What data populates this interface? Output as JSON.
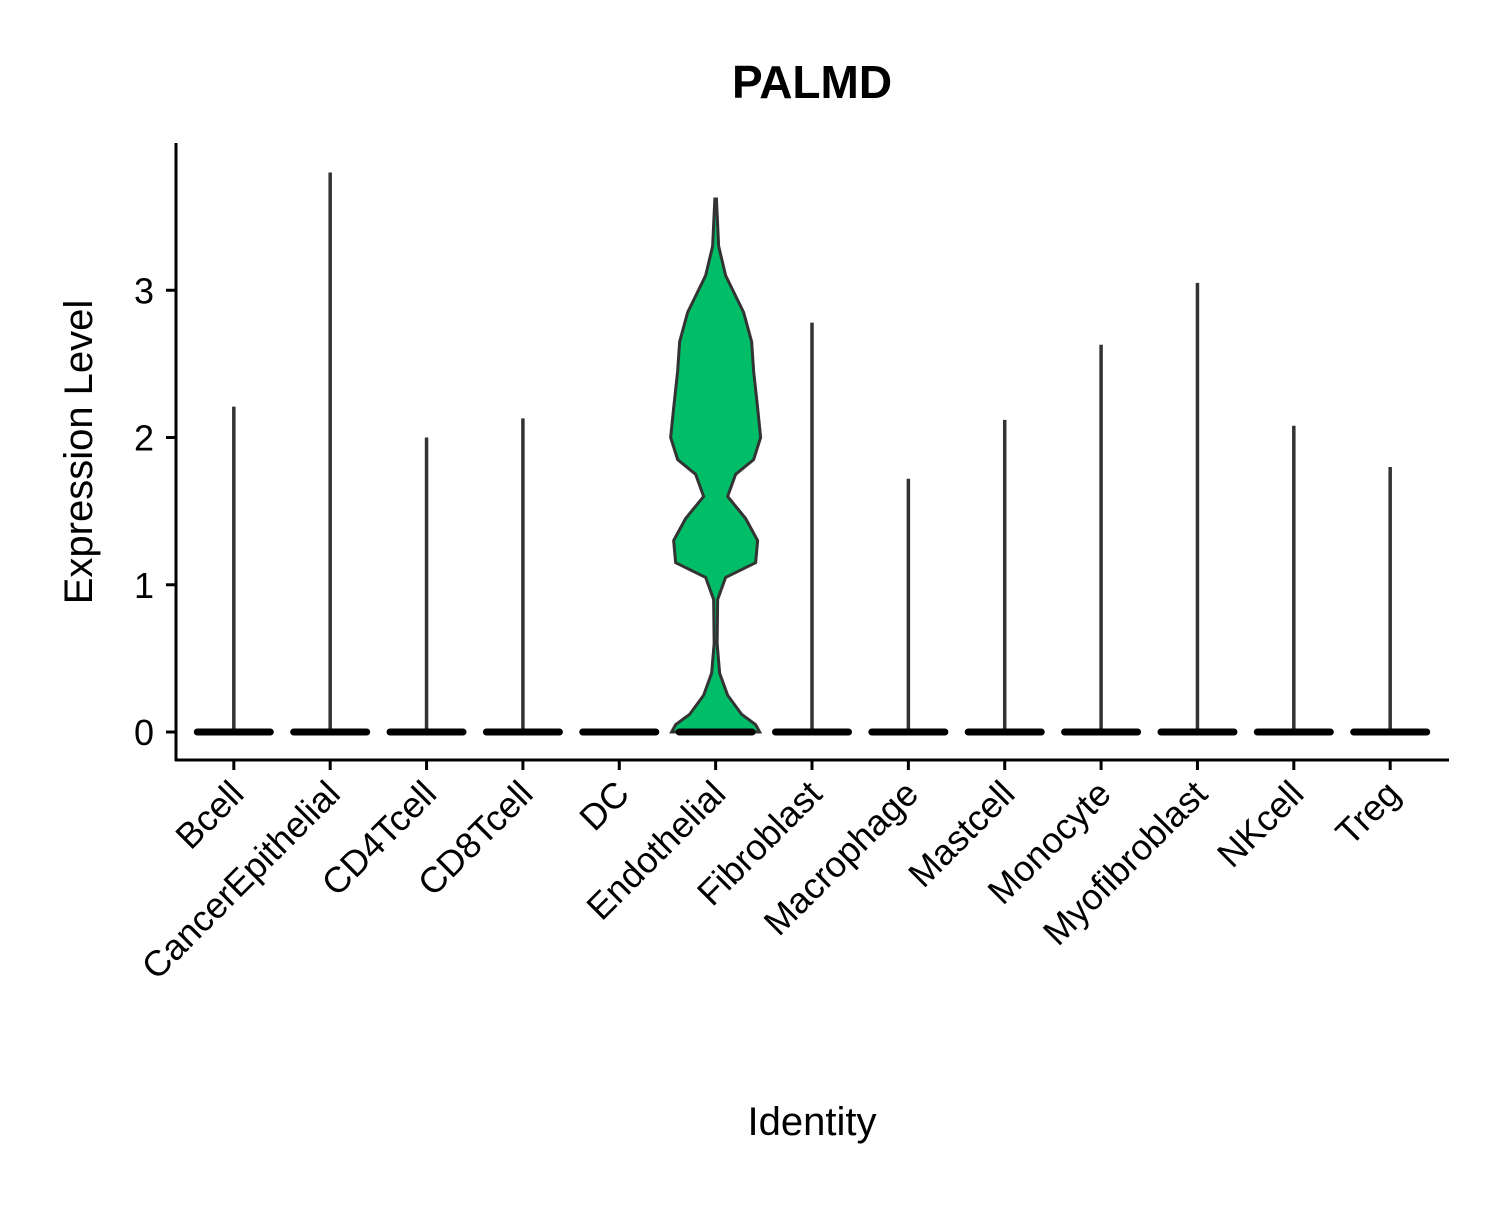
{
  "chart_data": {
    "type": "violin",
    "title": "PALMD",
    "x_label": "Identity",
    "y_label": "Expression Level",
    "categories": [
      "Bcell",
      "CancerEpithelial",
      "CD4Tcell",
      "CD8Tcell",
      "DC",
      "Endothelial",
      "Fibroblast",
      "Macrophage",
      "Mastcell",
      "Monocyte",
      "Myofibroblast",
      "NKcell",
      "Treg"
    ],
    "values": [
      2.21,
      3.8,
      2.0,
      2.13,
      0,
      3.62,
      2.78,
      1.72,
      2.12,
      2.63,
      3.05,
      2.08,
      1.8
    ],
    "color": "#00be67",
    "ylim": [
      -0.19,
      4.0
    ],
    "yticks": [
      0,
      1,
      2,
      3
    ]
  }
}
